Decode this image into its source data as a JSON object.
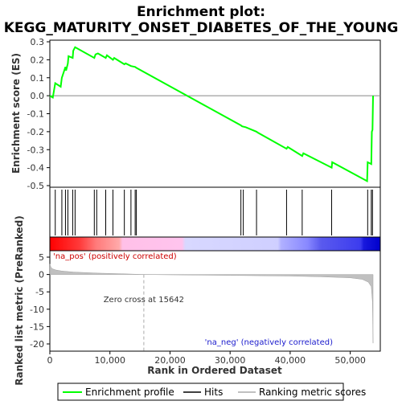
{
  "chart_data": {
    "type": "line",
    "title_line1": "Enrichment plot:",
    "title_line2": "KEGG_MATURITY_ONSET_DIABETES_OF_THE_YOUNG",
    "es_panel": {
      "ylabel": "Enrichment score (ES)",
      "ylim": [
        -0.5,
        0.3
      ],
      "yticks": [
        "0.3",
        "0.2",
        "0.1",
        "0.0",
        "-0.1",
        "-0.2",
        "-0.3",
        "-0.4",
        "-0.5"
      ],
      "series": [
        {
          "name": "Enrichment profile",
          "color": "#00ff00",
          "x": [
            0,
            500,
            900,
            1800,
            2000,
            2100,
            2600,
            2700,
            3000,
            3100,
            3800,
            3900,
            4200,
            7400,
            7600,
            8000,
            9300,
            9500,
            10500,
            10700,
            12400,
            12600,
            13500,
            14200,
            14400,
            31800,
            32000,
            32600,
            34400,
            34600,
            39400,
            39600,
            42000,
            42200,
            46900,
            47000,
            52800,
            52900,
            53500,
            53600,
            53700,
            53800
          ],
          "y": [
            0.0,
            -0.01,
            0.07,
            0.05,
            0.1,
            0.11,
            0.16,
            0.14,
            0.18,
            0.22,
            0.21,
            0.25,
            0.27,
            0.21,
            0.23,
            0.235,
            0.21,
            0.225,
            0.2,
            0.21,
            0.175,
            0.18,
            0.165,
            0.16,
            0.155,
            -0.165,
            -0.17,
            -0.175,
            -0.2,
            -0.205,
            -0.295,
            -0.285,
            -0.335,
            -0.32,
            -0.4,
            -0.37,
            -0.475,
            -0.37,
            -0.38,
            -0.2,
            -0.19,
            0.0
          ]
        }
      ]
    },
    "hits": [
      900,
      2000,
      2600,
      3000,
      3800,
      4200,
      7400,
      7800,
      9300,
      10500,
      12400,
      13500,
      14200,
      14400,
      31800,
      32200,
      34400,
      39400,
      42000,
      46900,
      52900,
      53500,
      53700
    ],
    "ranked_panel": {
      "ylabel": "Ranked list metric (PreRanked)",
      "xlabel": "Rank in Ordered Dataset",
      "ylim": [
        -20,
        5
      ],
      "yticks": [
        "5",
        "0",
        "-5",
        "-10",
        "-15",
        "-20"
      ],
      "xticks": [
        "0",
        "10,000",
        "20,000",
        "30,000",
        "40,000",
        "50,000"
      ],
      "xlim": [
        0,
        55000
      ],
      "zero_cross": 15642,
      "zero_cross_label": "Zero cross at 15642",
      "pos_label": "'na_pos' (positively correlated)",
      "neg_label": "'na_neg' (negatively correlated)",
      "metric": {
        "x": [
          0,
          200,
          500,
          1000,
          2000,
          4000,
          8000,
          12000,
          15642,
          20000,
          30000,
          40000,
          45000,
          50000,
          52000,
          53000,
          53500,
          53700,
          53800
        ],
        "y": [
          3.0,
          2.0,
          1.6,
          1.3,
          1.0,
          0.7,
          0.4,
          0.2,
          0.0,
          -0.1,
          -0.25,
          -0.45,
          -0.65,
          -0.95,
          -1.4,
          -2.2,
          -3.5,
          -8.0,
          -19.8
        ]
      }
    },
    "legend": {
      "items": [
        {
          "label": "Enrichment profile",
          "color": "#00ff00"
        },
        {
          "label": "Hits",
          "color": "#000000"
        },
        {
          "label": "Ranking metric scores",
          "color": "#c0c0c0"
        }
      ]
    }
  }
}
